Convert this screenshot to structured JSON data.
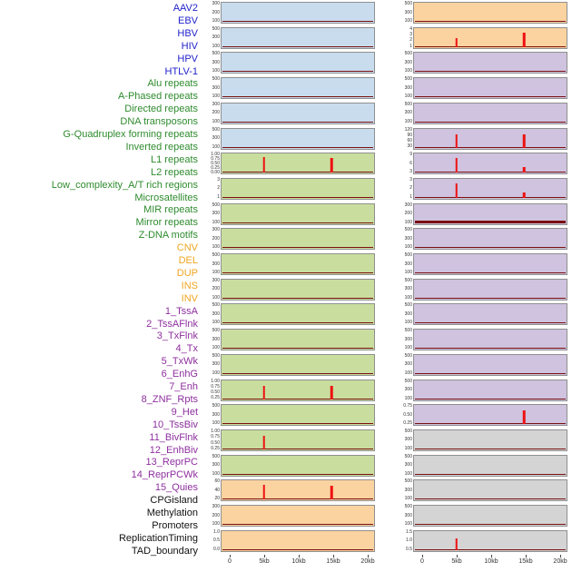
{
  "page": {
    "background": "#ffffff"
  },
  "colors": {
    "panel_blue": "#c8dcee",
    "panel_green": "#c9de9e",
    "panel_orange": "#fbd3a0",
    "panel_purple": "#cfc3df",
    "panel_gray": "#d4d4d4",
    "spike_red": "#ee1111",
    "trace_darkred": "#7a1010",
    "label_virus": "#2222cc",
    "label_repeat": "#2e8b2e",
    "label_sv": "#efa520",
    "label_chromatin": "#8e2f9e",
    "label_other": "#111111",
    "tick_text": "#333333"
  },
  "row_labels": [
    {
      "text": "AAV2",
      "group": "virus"
    },
    {
      "text": "EBV",
      "group": "virus"
    },
    {
      "text": "HBV",
      "group": "virus"
    },
    {
      "text": "HIV",
      "group": "virus"
    },
    {
      "text": "HPV",
      "group": "virus"
    },
    {
      "text": "HTLV-1",
      "group": "virus"
    },
    {
      "text": "Alu repeats",
      "group": "repeat"
    },
    {
      "text": "A-Phased repeats",
      "group": "repeat"
    },
    {
      "text": "Directed repeats",
      "group": "repeat"
    },
    {
      "text": "DNA transposons",
      "group": "repeat"
    },
    {
      "text": "G-Quadruplex forming repeats",
      "group": "repeat"
    },
    {
      "text": "Inverted repeats",
      "group": "repeat"
    },
    {
      "text": "L1 repeats",
      "group": "repeat"
    },
    {
      "text": "L2 repeats",
      "group": "repeat"
    },
    {
      "text": "Low_complexity_A/T rich regions",
      "group": "repeat"
    },
    {
      "text": "Microsatellites",
      "group": "repeat"
    },
    {
      "text": "MIR repeats",
      "group": "repeat"
    },
    {
      "text": "Mirror repeats",
      "group": "repeat"
    },
    {
      "text": "Z-DNA motifs",
      "group": "repeat"
    },
    {
      "text": "CNV",
      "group": "sv"
    },
    {
      "text": "DEL",
      "group": "sv"
    },
    {
      "text": "DUP",
      "group": "sv"
    },
    {
      "text": "INS",
      "group": "sv"
    },
    {
      "text": "INV",
      "group": "sv"
    },
    {
      "text": "1_TssA",
      "group": "chromatin"
    },
    {
      "text": "2_TssAFlnk",
      "group": "chromatin"
    },
    {
      "text": "3_TxFlnk",
      "group": "chromatin"
    },
    {
      "text": "4_Tx",
      "group": "chromatin"
    },
    {
      "text": "5_TxWk",
      "group": "chromatin"
    },
    {
      "text": "6_EnhG",
      "group": "chromatin"
    },
    {
      "text": "7_Enh",
      "group": "chromatin"
    },
    {
      "text": "8_ZNF_Rpts",
      "group": "chromatin"
    },
    {
      "text": "9_Het",
      "group": "chromatin"
    },
    {
      "text": "10_TssBiv",
      "group": "chromatin"
    },
    {
      "text": "11_BivFlnk",
      "group": "chromatin"
    },
    {
      "text": "12_EnhBiv",
      "group": "chromatin"
    },
    {
      "text": "13_ReprPC",
      "group": "chromatin"
    },
    {
      "text": "14_ReprPCWk",
      "group": "chromatin"
    },
    {
      "text": "15_Quies",
      "group": "chromatin"
    },
    {
      "text": "CPGisland",
      "group": "other"
    },
    {
      "text": "Methylation",
      "group": "other"
    },
    {
      "text": "Promoters",
      "group": "other"
    },
    {
      "text": "ReplicationTiming",
      "group": "other"
    },
    {
      "text": "TAD_boundary",
      "group": "other"
    }
  ],
  "x_axis": {
    "tick_labels": [
      "0",
      "5kb",
      "10kb",
      "15kb",
      "20kb"
    ],
    "tick_kb": [
      0,
      5,
      10,
      15,
      20
    ],
    "range_kb": [
      0,
      20
    ]
  },
  "chart_data": {
    "type": "line",
    "title": "",
    "description": "Two columns of stacked genomic-feature density tracks over a 0-20kb window; traces are mostly flat near zero (dark red baseline) with sharp red peaks near 5kb and 15kb in some tracks",
    "x_unit": "kb",
    "x_range": [
      0,
      20
    ],
    "legend_position": "none",
    "grid": false,
    "columns": [
      {
        "id": "left_column",
        "panels": [
          {
            "bg": "blue",
            "yticks": [
              "300",
              "200",
              "100"
            ],
            "spikes": []
          },
          {
            "bg": "blue",
            "yticks": [
              "500",
              "300",
              "100"
            ],
            "spikes": []
          },
          {
            "bg": "blue",
            "yticks": [
              "500",
              "300",
              "100"
            ],
            "spikes": []
          },
          {
            "bg": "blue",
            "yticks": [
              "500",
              "300",
              "100"
            ],
            "spikes": []
          },
          {
            "bg": "blue",
            "yticks": [
              "300",
              "200",
              "100"
            ],
            "spikes": []
          },
          {
            "bg": "blue",
            "yticks": [
              "500",
              "300",
              "100"
            ],
            "spikes": []
          },
          {
            "bg": "green",
            "yticks": [
              "1.00",
              "0.75",
              "0.50",
              "0.25",
              "0.00"
            ],
            "spikes": [
              {
                "x_kb": 5,
                "h": 0.9
              },
              {
                "x_kb": 15,
                "h": 0.85
              }
            ]
          },
          {
            "bg": "green",
            "yticks": [
              "3",
              "2",
              "1"
            ],
            "spikes": []
          },
          {
            "bg": "green",
            "yticks": [
              "500",
              "300",
              "100"
            ],
            "spikes": []
          },
          {
            "bg": "green",
            "yticks": [
              "300",
              "200",
              "100"
            ],
            "spikes": []
          },
          {
            "bg": "green",
            "yticks": [
              "500",
              "300",
              "100"
            ],
            "spikes": []
          },
          {
            "bg": "green",
            "yticks": [
              "300",
              "200",
              "100"
            ],
            "spikes": []
          },
          {
            "bg": "green",
            "yticks": [
              "500",
              "300",
              "100"
            ],
            "spikes": []
          },
          {
            "bg": "green",
            "yticks": [
              "500",
              "300",
              "100"
            ],
            "spikes": []
          },
          {
            "bg": "green",
            "yticks": [
              "500",
              "300",
              "100"
            ],
            "spikes": []
          },
          {
            "bg": "green",
            "yticks": [
              "1.00",
              "0.75",
              "0.50",
              "0.25"
            ],
            "spikes": [
              {
                "x_kb": 5,
                "h": 0.8
              },
              {
                "x_kb": 15,
                "h": 0.75
              }
            ]
          },
          {
            "bg": "green",
            "yticks": [
              "500",
              "300",
              "100"
            ],
            "spikes": []
          },
          {
            "bg": "green",
            "yticks": [
              "1.00",
              "0.75",
              "0.50",
              "0.25"
            ],
            "spikes": [
              {
                "x_kb": 5,
                "h": 0.8
              }
            ]
          },
          {
            "bg": "green",
            "yticks": [
              "500",
              "300",
              "100"
            ],
            "spikes": []
          },
          {
            "bg": "orange",
            "yticks": [
              "60",
              "40",
              "20"
            ],
            "spikes": [
              {
                "x_kb": 5,
                "h": 0.85
              },
              {
                "x_kb": 15,
                "h": 0.8
              }
            ]
          },
          {
            "bg": "orange",
            "yticks": [
              "300",
              "200",
              "100"
            ],
            "spikes": []
          },
          {
            "bg": "orange",
            "yticks": [
              "1.0",
              "0.5",
              "0.0"
            ],
            "spikes": []
          }
        ]
      },
      {
        "id": "right_column",
        "panels": [
          {
            "bg": "orange",
            "yticks": [
              "500",
              "300",
              "100"
            ],
            "spikes": []
          },
          {
            "bg": "orange",
            "yticks": [
              "4",
              "3",
              "2",
              "1"
            ],
            "spikes": [
              {
                "x_kb": 5,
                "h": 0.5
              },
              {
                "x_kb": 15,
                "h": 0.85
              }
            ]
          },
          {
            "bg": "purple",
            "yticks": [
              "500",
              "300",
              "100"
            ],
            "spikes": []
          },
          {
            "bg": "purple",
            "yticks": [
              "500",
              "300",
              "100"
            ],
            "spikes": []
          },
          {
            "bg": "purple",
            "yticks": [
              "500",
              "300",
              "100"
            ],
            "spikes": []
          },
          {
            "bg": "purple",
            "yticks": [
              "120",
              "90",
              "60",
              "30"
            ],
            "spikes": [
              {
                "x_kb": 5,
                "h": 0.75
              },
              {
                "x_kb": 15,
                "h": 0.8
              }
            ]
          },
          {
            "bg": "purple",
            "yticks": [
              "9",
              "6",
              "3"
            ],
            "spikes": [
              {
                "x_kb": 5,
                "h": 0.85
              },
              {
                "x_kb": 15,
                "h": 0.35
              }
            ]
          },
          {
            "bg": "purple",
            "yticks": [
              "3",
              "2",
              "1"
            ],
            "spikes": [
              {
                "x_kb": 5,
                "h": 0.85
              },
              {
                "x_kb": 15,
                "h": 0.3
              }
            ]
          },
          {
            "bg": "purple",
            "yticks": [
              "300",
              "200",
              "100"
            ],
            "spikes": [],
            "thick_baseline": true
          },
          {
            "bg": "purple",
            "yticks": [
              "500",
              "300",
              "100"
            ],
            "spikes": []
          },
          {
            "bg": "purple",
            "yticks": [
              "500",
              "300",
              "100"
            ],
            "spikes": []
          },
          {
            "bg": "purple",
            "yticks": [
              "500",
              "300",
              "100"
            ],
            "spikes": []
          },
          {
            "bg": "purple",
            "yticks": [
              "500",
              "300",
              "100"
            ],
            "spikes": []
          },
          {
            "bg": "purple",
            "yticks": [
              "500",
              "300",
              "100"
            ],
            "spikes": []
          },
          {
            "bg": "purple",
            "yticks": [
              "500",
              "300",
              "100"
            ],
            "spikes": []
          },
          {
            "bg": "purple",
            "yticks": [
              "500",
              "300",
              "100"
            ],
            "spikes": []
          },
          {
            "bg": "purple",
            "yticks": [
              "0.75",
              "0.50",
              "0.25"
            ],
            "spikes": [
              {
                "x_kb": 15,
                "h": 0.8
              }
            ]
          },
          {
            "bg": "gray",
            "yticks": [
              "500",
              "300",
              "100"
            ],
            "spikes": []
          },
          {
            "bg": "gray",
            "yticks": [
              "500",
              "300",
              "100"
            ],
            "spikes": []
          },
          {
            "bg": "gray",
            "yticks": [
              "500",
              "300",
              "100"
            ],
            "spikes": []
          },
          {
            "bg": "gray",
            "yticks": [
              "500",
              "300",
              "100"
            ],
            "spikes": []
          },
          {
            "bg": "gray",
            "yticks": [
              "1.5",
              "1.0",
              "0.5"
            ],
            "spikes": [
              {
                "x_kb": 5,
                "h": 0.7
              }
            ]
          }
        ]
      }
    ]
  }
}
